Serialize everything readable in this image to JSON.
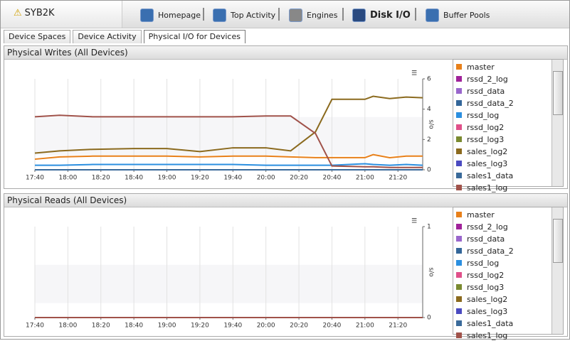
{
  "header": {
    "server": "SYB2K",
    "nav": [
      "Homepage",
      "Top Activity",
      "Engines",
      "Disk I/O",
      "Buffer Pools"
    ]
  },
  "tabs": [
    "Device Spaces",
    "Device Activity",
    "Physical I/O for Devices"
  ],
  "chart_data": [
    {
      "type": "line",
      "title": "Physical Writes (All Devices)",
      "y_label": "s/o",
      "x": [
        "17:40",
        "17:55",
        "18:15",
        "18:40",
        "19:00",
        "19:20",
        "19:40",
        "20:00",
        "20:15",
        "20:30",
        "20:40",
        "21:00",
        "21:05",
        "21:15",
        "21:25",
        "21:35"
      ],
      "xlim": [
        "17:40",
        "21:35"
      ],
      "xticks": [
        "17:40",
        "18:00",
        "18:20",
        "18:40",
        "19:00",
        "19:20",
        "19:40",
        "20:00",
        "20:20",
        "20:40",
        "21:00",
        "21:20"
      ],
      "ylim": [
        0,
        6
      ],
      "yticks": [
        0,
        2,
        4,
        6
      ],
      "grid": true,
      "series": [
        {
          "name": "master",
          "color": "#e8801a",
          "values": [
            0.7,
            0.85,
            0.9,
            0.9,
            0.9,
            0.85,
            0.9,
            0.9,
            0.85,
            0.8,
            0.8,
            0.8,
            1.0,
            0.8,
            0.9,
            0.9
          ]
        },
        {
          "name": "rssd_2_log",
          "color": "#a0229a",
          "values": [
            0,
            0,
            0,
            0,
            0,
            0,
            0,
            0,
            0,
            0,
            0,
            0,
            0,
            0,
            0,
            0
          ]
        },
        {
          "name": "rssd_data",
          "color": "#9966cc",
          "values": [
            0,
            0,
            0,
            0,
            0,
            0,
            0,
            0,
            0,
            0,
            0,
            0,
            0,
            0,
            0,
            0
          ]
        },
        {
          "name": "rssd_data_2",
          "color": "#336699",
          "values": [
            0,
            0,
            0,
            0,
            0,
            0,
            0,
            0,
            0,
            0,
            0,
            0,
            0,
            0,
            0,
            0
          ]
        },
        {
          "name": "rssd_log",
          "color": "#2b8fe0",
          "values": [
            0.3,
            0.3,
            0.35,
            0.35,
            0.35,
            0.35,
            0.35,
            0.3,
            0.3,
            0.3,
            0.3,
            0.4,
            0.35,
            0.3,
            0.35,
            0.3
          ]
        },
        {
          "name": "rssd_log2",
          "color": "#e0508a",
          "values": [
            0,
            0,
            0,
            0,
            0,
            0,
            0,
            0,
            0,
            0,
            0,
            0,
            0,
            0,
            0,
            0
          ]
        },
        {
          "name": "rssd_log3",
          "color": "#7a8a30",
          "values": [
            0,
            0,
            0,
            0,
            0,
            0,
            0,
            0,
            0,
            0,
            0,
            0,
            0,
            0,
            0,
            0
          ]
        },
        {
          "name": "sales_log2",
          "color": "#8b6a1e",
          "values": [
            1.1,
            1.25,
            1.35,
            1.4,
            1.4,
            1.2,
            1.45,
            1.45,
            1.25,
            2.5,
            4.65,
            4.65,
            4.85,
            4.7,
            4.8,
            4.75
          ]
        },
        {
          "name": "sales_log3",
          "color": "#4a4ac0",
          "values": [
            0,
            0,
            0,
            0,
            0,
            0,
            0,
            0,
            0,
            0,
            0,
            0,
            0,
            0,
            0,
            0
          ]
        },
        {
          "name": "sales1_data",
          "color": "#3a6a9a",
          "values": [
            0,
            0,
            0,
            0,
            0,
            0,
            0,
            0,
            0,
            0,
            0,
            0,
            0,
            0,
            0,
            0
          ]
        },
        {
          "name": "sales1_log",
          "color": "#a0524a",
          "values": [
            3.5,
            3.6,
            3.5,
            3.5,
            3.5,
            3.5,
            3.5,
            3.55,
            3.55,
            2.4,
            0.25,
            0.2,
            0.2,
            0.15,
            0.15,
            0.15
          ]
        }
      ]
    },
    {
      "type": "line",
      "title": "Physical Reads (All Devices)",
      "y_label": "s/o",
      "x": [
        "17:40",
        "17:55",
        "18:15",
        "18:40",
        "19:00",
        "19:20",
        "19:40",
        "20:00",
        "20:15",
        "20:30",
        "20:40",
        "21:00",
        "21:05",
        "21:15",
        "21:25",
        "21:35"
      ],
      "xlim": [
        "17:40",
        "21:35"
      ],
      "xticks": [
        "17:40",
        "18:00",
        "18:20",
        "18:40",
        "19:00",
        "19:20",
        "19:40",
        "20:00",
        "20:20",
        "20:40",
        "21:00",
        "21:20"
      ],
      "ylim": [
        0,
        1
      ],
      "yticks": [
        0,
        1
      ],
      "grid": true,
      "series": [
        {
          "name": "master",
          "color": "#e8801a",
          "values": [
            0,
            0,
            0,
            0,
            0,
            0,
            0,
            0,
            0,
            0,
            0,
            0,
            0,
            0,
            0,
            0
          ]
        },
        {
          "name": "rssd_2_log",
          "color": "#a0229a",
          "values": [
            0,
            0,
            0,
            0,
            0,
            0,
            0,
            0,
            0,
            0,
            0,
            0,
            0,
            0,
            0,
            0
          ]
        },
        {
          "name": "rssd_data",
          "color": "#9966cc",
          "values": [
            0,
            0,
            0,
            0,
            0,
            0,
            0,
            0,
            0,
            0,
            0,
            0,
            0,
            0,
            0,
            0
          ]
        },
        {
          "name": "rssd_data_2",
          "color": "#336699",
          "values": [
            0,
            0,
            0,
            0,
            0,
            0,
            0,
            0,
            0,
            0,
            0,
            0,
            0,
            0,
            0,
            0
          ]
        },
        {
          "name": "rssd_log",
          "color": "#2b8fe0",
          "values": [
            0,
            0,
            0,
            0,
            0,
            0,
            0,
            0,
            0,
            0,
            0,
            0,
            0,
            0,
            0,
            0
          ]
        },
        {
          "name": "rssd_log2",
          "color": "#e0508a",
          "values": [
            0,
            0,
            0,
            0,
            0,
            0,
            0,
            0,
            0,
            0,
            0,
            0,
            0,
            0,
            0,
            0
          ]
        },
        {
          "name": "rssd_log3",
          "color": "#7a8a30",
          "values": [
            0,
            0,
            0,
            0,
            0,
            0,
            0,
            0,
            0,
            0,
            0,
            0,
            0,
            0,
            0,
            0
          ]
        },
        {
          "name": "sales_log2",
          "color": "#8b6a1e",
          "values": [
            0,
            0,
            0,
            0,
            0,
            0,
            0,
            0,
            0,
            0,
            0,
            0,
            0,
            0,
            0,
            0
          ]
        },
        {
          "name": "sales_log3",
          "color": "#4a4ac0",
          "values": [
            0,
            0,
            0,
            0,
            0,
            0,
            0,
            0,
            0,
            0,
            0,
            0,
            0,
            0,
            0,
            0
          ]
        },
        {
          "name": "sales1_data",
          "color": "#3a6a9a",
          "values": [
            0,
            0,
            0,
            0,
            0,
            0,
            0,
            0,
            0,
            0,
            0,
            0,
            0,
            0,
            0,
            0
          ]
        },
        {
          "name": "sales1_log",
          "color": "#a0524a",
          "values": [
            0,
            0,
            0,
            0,
            0,
            0,
            0,
            0,
            0,
            0,
            0,
            0,
            0,
            0,
            0,
            0
          ]
        }
      ]
    }
  ]
}
